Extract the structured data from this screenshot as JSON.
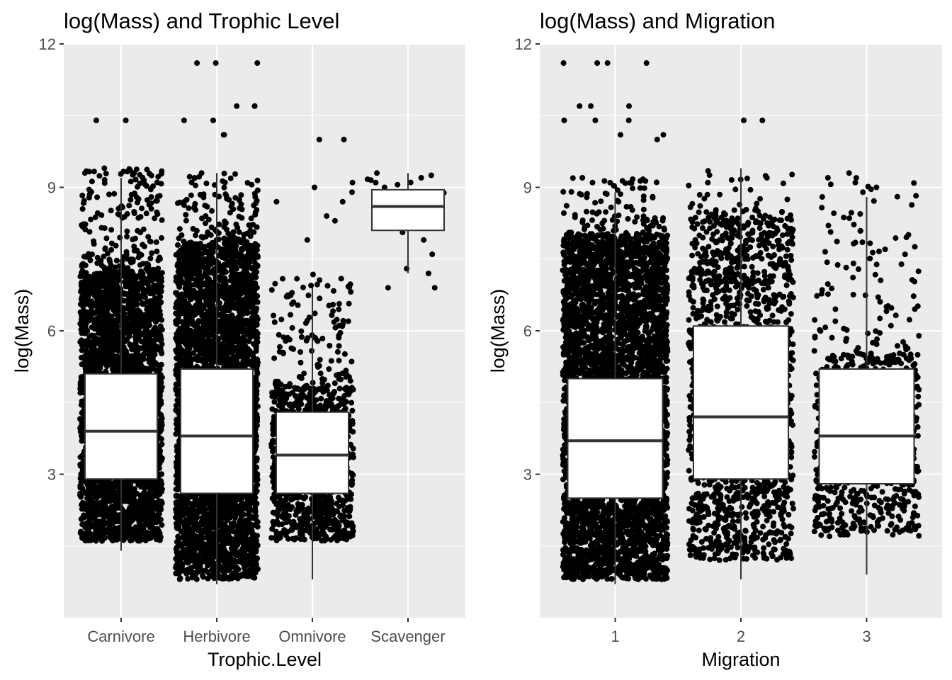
{
  "chart_data": [
    {
      "type": "scatter",
      "subtype": "jittered-points-with-boxplot",
      "title": "log(Mass) and Trophic Level",
      "xlabel": "Trophic.Level",
      "ylabel": "log(Mass)",
      "categories": [
        "Carnivore",
        "Herbivore",
        "Omnivore",
        "Scavenger"
      ],
      "yticks": [
        "3",
        "6",
        "9",
        "12"
      ],
      "ylim": [
        0.0,
        12.0
      ],
      "grid": true,
      "point_color": "#000000",
      "panel_background": "#ebebeb",
      "boxplots": [
        {
          "category": "Carnivore",
          "whisker_low": 1.4,
          "q1": 2.9,
          "median": 3.9,
          "q3": 5.1,
          "whisker_high": 9.2
        },
        {
          "category": "Herbivore",
          "whisker_low": 0.7,
          "q1": 2.6,
          "median": 3.8,
          "q3": 5.2,
          "whisker_high": 9.3
        },
        {
          "category": "Omnivore",
          "whisker_low": 0.8,
          "q1": 2.6,
          "median": 3.4,
          "q3": 4.3,
          "whisker_high": 6.9
        },
        {
          "category": "Scavenger",
          "whisker_low": 7.2,
          "q1": 8.1,
          "median": 8.6,
          "q3": 8.95,
          "whisker_high": 9.3
        }
      ],
      "point_groups": [
        {
          "category": "Carnivore",
          "dense_low": 1.6,
          "dense_high": 7.2,
          "sparse_high": 9.4,
          "density": 1.0
        },
        {
          "category": "Herbivore",
          "dense_low": 0.8,
          "dense_high": 7.8,
          "sparse_high": 9.3,
          "density": 1.0
        },
        {
          "category": "Omnivore",
          "dense_low": 1.6,
          "dense_high": 4.8,
          "sparse_high": 7.2,
          "density": 0.6
        },
        {
          "category": "Scavenger",
          "dense_low": 8.0,
          "dense_high": 9.2,
          "sparse_high": 9.3,
          "density": 0.02
        }
      ],
      "outliers": [
        {
          "category": "Carnivore",
          "values": [
            10.4,
            10.4,
            9.4,
            9.3,
            9.1
          ]
        },
        {
          "category": "Herbivore",
          "values": [
            11.6,
            11.6,
            11.6,
            10.7,
            10.7,
            10.1,
            10.1,
            10.4,
            10.4,
            10.7,
            9.3,
            9.2
          ]
        },
        {
          "category": "Omnivore",
          "values": [
            10.0,
            10.0,
            9.1,
            9.0,
            8.9,
            8.7,
            8.7,
            8.4,
            8.3,
            7.9
          ]
        },
        {
          "category": "Scavenger",
          "values": [
            9.3,
            9.2,
            9.1,
            9.0,
            8.9,
            8.8,
            8.7,
            8.6,
            8.6,
            8.4,
            8.3,
            8.2,
            7.9,
            7.6,
            7.3,
            7.2,
            6.9,
            6.9
          ]
        }
      ]
    },
    {
      "type": "scatter",
      "subtype": "jittered-points-with-boxplot",
      "title": "log(Mass) and Migration",
      "xlabel": "Migration",
      "ylabel": "log(Mass)",
      "categories": [
        "1",
        "2",
        "3"
      ],
      "yticks": [
        "3",
        "6",
        "9",
        "12"
      ],
      "ylim": [
        0.0,
        12.0
      ],
      "grid": true,
      "point_color": "#000000",
      "panel_background": "#ebebeb",
      "boxplots": [
        {
          "category": "1",
          "whisker_low": 0.7,
          "q1": 2.5,
          "median": 3.7,
          "q3": 5.0,
          "whisker_high": 8.9
        },
        {
          "category": "2",
          "whisker_low": 0.8,
          "q1": 2.9,
          "median": 4.2,
          "q3": 6.1,
          "whisker_high": 9.4
        },
        {
          "category": "3",
          "whisker_low": 0.9,
          "q1": 2.8,
          "median": 3.8,
          "q3": 5.2,
          "whisker_high": 8.8
        }
      ],
      "point_groups": [
        {
          "category": "1",
          "dense_low": 0.8,
          "dense_high": 8.0,
          "sparse_high": 9.2,
          "density": 1.0
        },
        {
          "category": "2",
          "dense_low": 1.2,
          "dense_high": 8.5,
          "sparse_high": 9.4,
          "density": 0.35
        },
        {
          "category": "3",
          "dense_low": 1.7,
          "dense_high": 5.5,
          "sparse_high": 9.3,
          "density": 0.3
        }
      ],
      "outliers": [
        {
          "category": "1",
          "values": [
            11.6,
            11.6,
            11.6,
            11.6,
            10.7,
            10.7,
            10.7,
            10.4,
            10.4,
            10.1,
            10.1,
            10.0,
            10.4,
            9.1,
            9.2
          ]
        },
        {
          "category": "2",
          "values": [
            10.4,
            10.4,
            9.2,
            9.1
          ]
        },
        {
          "category": "3",
          "values": [
            9.3,
            9.2,
            9.1,
            9.0,
            8.9,
            8.8
          ]
        }
      ]
    }
  ]
}
